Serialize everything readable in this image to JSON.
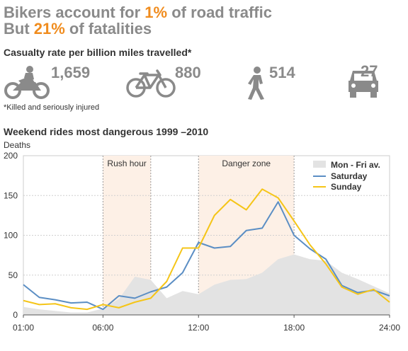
{
  "headline": {
    "line1_pre": "Bikers account for ",
    "line1_hl": "1%",
    "line1_post": " of road traffic",
    "line2_pre": "But ",
    "line2_hl": "21%",
    "line2_post": " of fatalities"
  },
  "subtitle": "Casualty rate per billion miles travelled*",
  "stats": [
    {
      "icon": "motorcycle-icon",
      "value": "1,659"
    },
    {
      "icon": "bicycle-icon",
      "value": "880"
    },
    {
      "icon": "pedestrian-icon",
      "value": "514"
    },
    {
      "icon": "car-icon",
      "value": "27"
    }
  ],
  "footnote": "*Killed and seriously injured",
  "colors": {
    "accent": "#f08c1e",
    "saturday": "#5b8ec4",
    "sunday": "#f5c518",
    "weekday_area": "#e3e3e3",
    "zone": "#fdf0e6"
  },
  "chart_data": {
    "type": "line",
    "title": "Weekend rides most dangerous 1999 –2010",
    "ylabel": "Deaths",
    "xlabel": "",
    "ylim": [
      0,
      200
    ],
    "xlim": [
      1,
      24
    ],
    "yticks": [
      0,
      50,
      100,
      150,
      200
    ],
    "xticks": [
      {
        "value": 1,
        "label": "01:00"
      },
      {
        "value": 6,
        "label": "06:00"
      },
      {
        "value": 12,
        "label": "12:00"
      },
      {
        "value": 18,
        "label": "18:00"
      },
      {
        "value": 24,
        "label": "24:00"
      }
    ],
    "x": [
      1,
      2,
      3,
      4,
      5,
      6,
      7,
      8,
      9,
      10,
      11,
      12,
      13,
      14,
      15,
      16,
      17,
      18,
      19,
      20,
      21,
      22,
      23,
      24
    ],
    "bands": [
      {
        "label": "Rush hour",
        "from": 6,
        "to": 9
      },
      {
        "label": "Danger zone",
        "from": 12,
        "to": 18
      }
    ],
    "legend_position": "top-right",
    "series": [
      {
        "name": "Mon - Fri av.",
        "kind": "area",
        "values": [
          10,
          7,
          5,
          3,
          3,
          8,
          20,
          48,
          44,
          21,
          30,
          26,
          38,
          44,
          45,
          53,
          70,
          76,
          70,
          68,
          53,
          45,
          36,
          27
        ]
      },
      {
        "name": "Saturday",
        "kind": "line",
        "values": [
          38,
          22,
          19,
          15,
          16,
          7,
          24,
          21,
          29,
          35,
          53,
          91,
          84,
          86,
          106,
          109,
          142,
          100,
          83,
          70,
          37,
          28,
          31,
          24
        ]
      },
      {
        "name": "Sunday",
        "kind": "line",
        "values": [
          18,
          13,
          14,
          9,
          7,
          13,
          9,
          16,
          21,
          42,
          84,
          84,
          125,
          145,
          132,
          158,
          147,
          118,
          88,
          64,
          35,
          26,
          32,
          16
        ]
      }
    ]
  }
}
